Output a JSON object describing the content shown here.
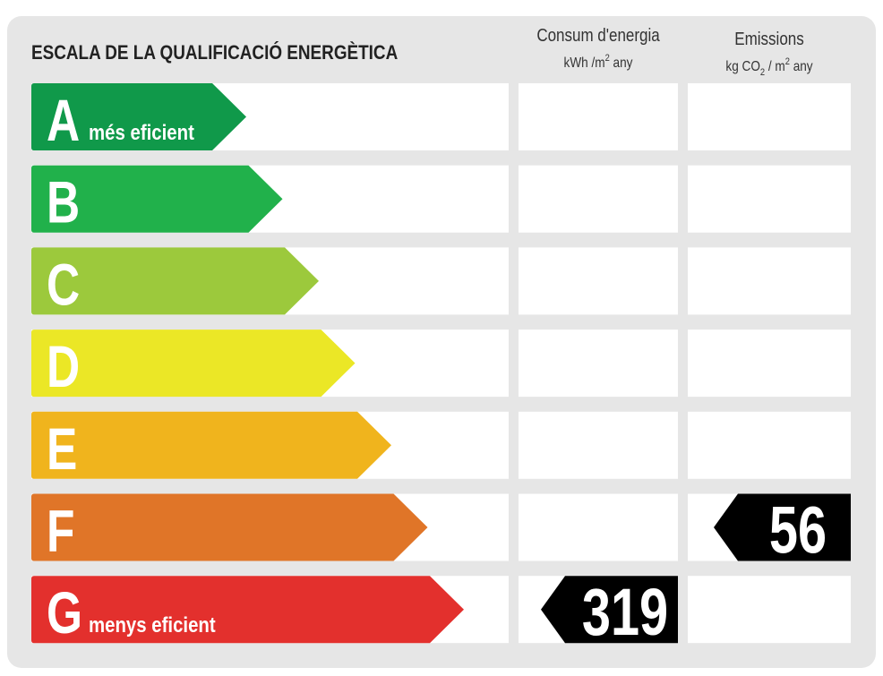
{
  "title": "ESCALA DE LA QUALIFICACIÓ ENERGÈTICA",
  "columns": [
    {
      "label": "Consum d'energia",
      "unit": [
        "kWh /m",
        "2",
        "  any"
      ],
      "unit_style": [
        "normal",
        "sup",
        "normal"
      ]
    },
    {
      "label": "Emissions",
      "unit": [
        "kg CO",
        "2",
        "  / m",
        "2",
        "  any"
      ],
      "unit_style": [
        "normal",
        "sub",
        "normal",
        "sup",
        "normal"
      ]
    }
  ],
  "rows": [
    {
      "letter": "A",
      "color": "#10994a",
      "note": "més eficient"
    },
    {
      "letter": "B",
      "color": "#21b14b"
    },
    {
      "letter": "C",
      "color": "#9cc93c"
    },
    {
      "letter": "D",
      "color": "#ebe726"
    },
    {
      "letter": "E",
      "color": "#f0b41d"
    },
    {
      "letter": "F",
      "color": "#e07528",
      "emissions": "56"
    },
    {
      "letter": "G",
      "color": "#e3302d",
      "note": "menys eficient",
      "consumption": "319"
    }
  ]
}
